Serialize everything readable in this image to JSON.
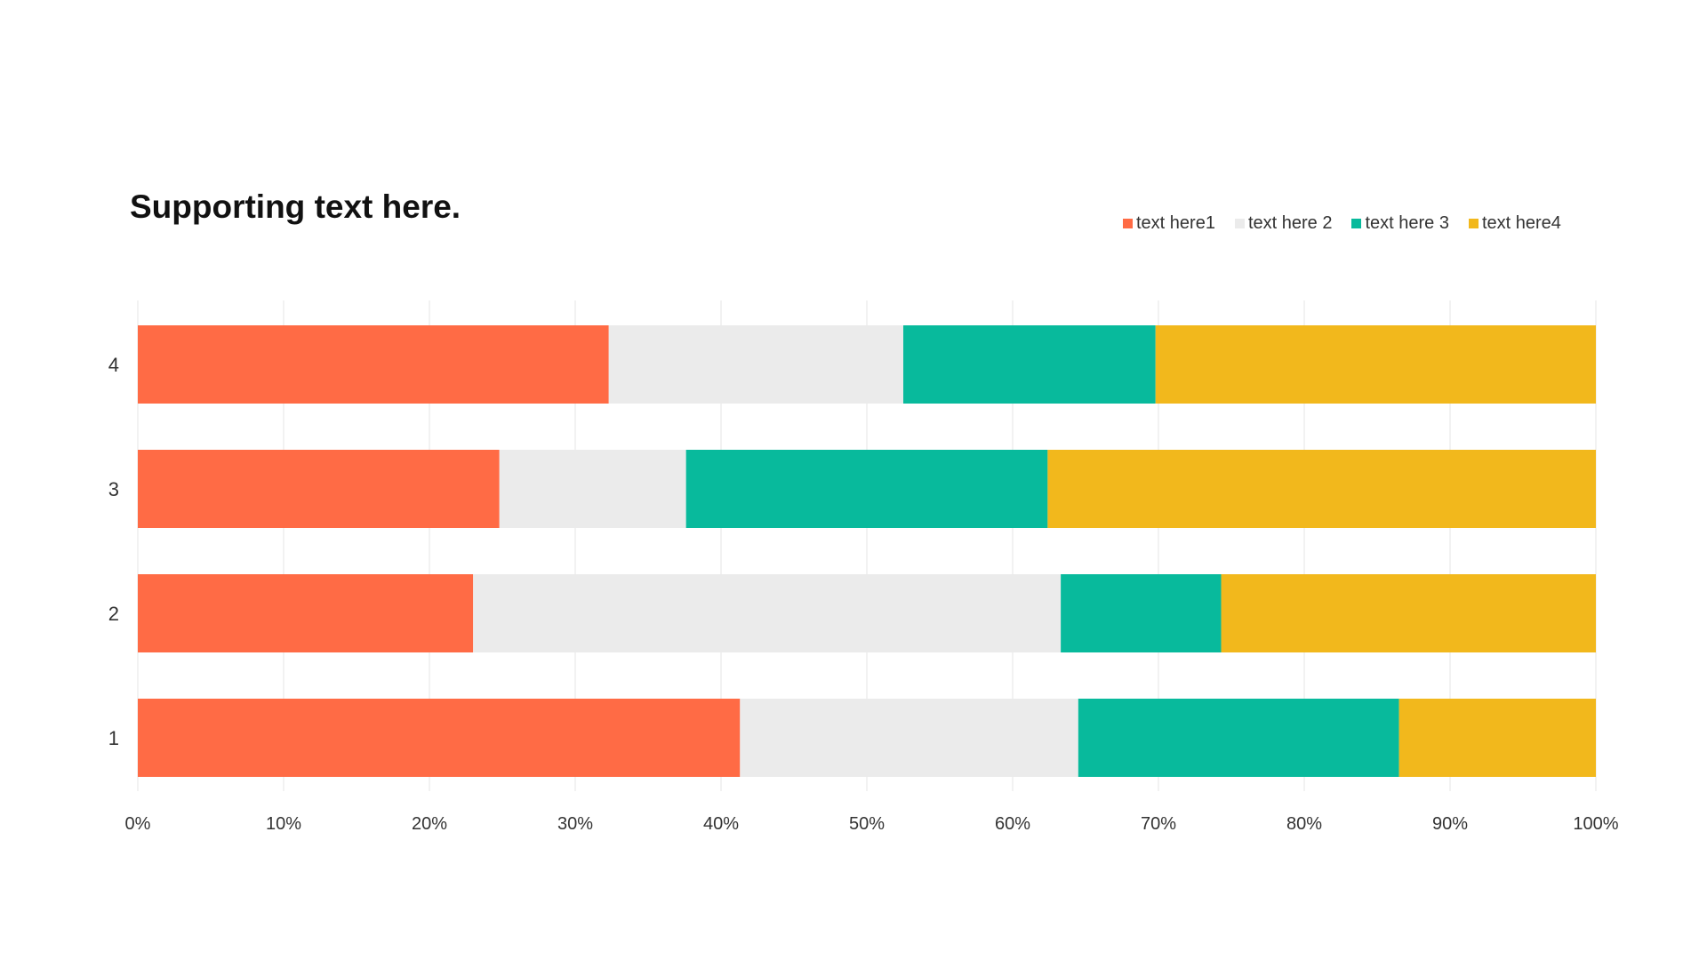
{
  "chart_data": {
    "type": "bar",
    "orientation": "horizontal",
    "stacked": true,
    "percent_stacked": true,
    "title": "Supporting text here.",
    "categories": [
      "1",
      "2",
      "3",
      "4"
    ],
    "series": [
      {
        "name": "text here1",
        "color": "#FF6B45",
        "values": [
          41.3,
          23.0,
          24.8,
          32.3
        ]
      },
      {
        "name": "text here 2",
        "color": "#EBEBEB",
        "values": [
          23.2,
          40.3,
          12.8,
          20.2
        ]
      },
      {
        "name": "text here 3",
        "color": "#08BA9C",
        "values": [
          22.0,
          11.0,
          24.8,
          17.3
        ]
      },
      {
        "name": "text here4",
        "color": "#F2B81C",
        "values": [
          13.5,
          25.7,
          37.6,
          30.2
        ]
      }
    ],
    "x_ticks": [
      "0%",
      "10%",
      "20%",
      "30%",
      "40%",
      "50%",
      "60%",
      "70%",
      "80%",
      "90%",
      "100%"
    ],
    "xlim": [
      0,
      100
    ],
    "grid": true,
    "legend_position": "top-right"
  }
}
